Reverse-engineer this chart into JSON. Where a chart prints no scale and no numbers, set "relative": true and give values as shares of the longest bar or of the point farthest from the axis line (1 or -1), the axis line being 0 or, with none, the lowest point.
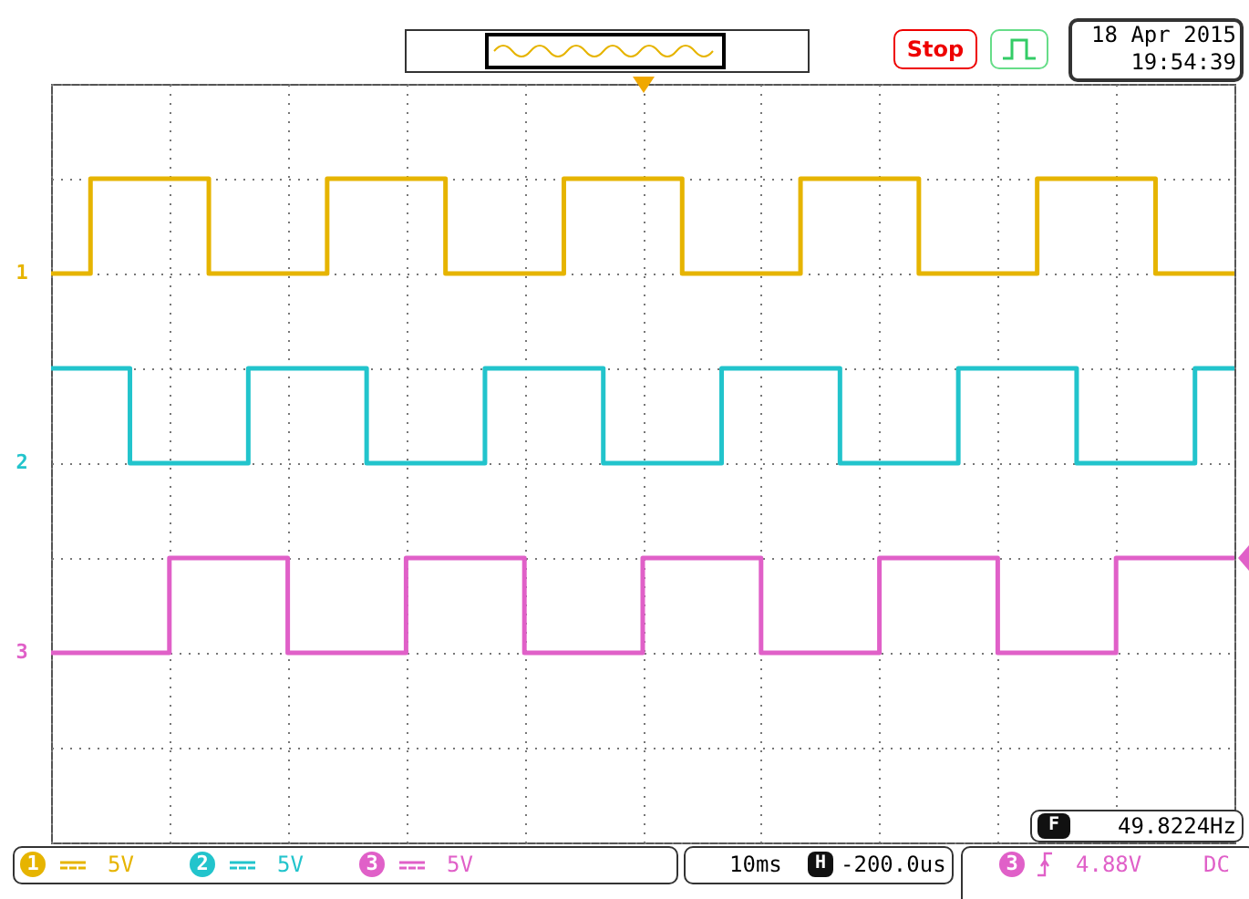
{
  "chart_data": {
    "type": "step",
    "relative": true,
    "grid": true,
    "legend": "bottom",
    "categories": [
      null,
      null,
      null,
      null,
      null,
      null,
      null,
      null,
      null,
      null,
      null,
      null,
      null,
      null,
      null,
      null,
      null,
      null,
      null,
      null,
      null,
      null,
      null,
      null,
      null,
      null,
      null,
      null,
      null,
      null,
      null
    ],
    "series": [
      {
        "name": "1",
        "color": "#e6b400",
        "values": [
          0.8,
          1,
          1,
          1,
          0.8,
          0.8,
          0.8,
          1,
          1,
          1,
          0.8,
          0.8,
          0.8,
          1,
          1,
          1,
          0.8,
          0.8,
          0.8,
          1,
          1,
          1,
          0.8,
          0.8,
          0.8,
          1,
          1,
          1,
          0.8,
          0.8,
          0.8
        ]
      },
      {
        "name": "2",
        "color": "#22c4cc",
        "values": [
          0.6,
          0.6,
          0.4,
          0.4,
          0.4,
          0.6,
          0.6,
          0.6,
          0.4,
          0.4,
          0.4,
          0.6,
          0.6,
          0.6,
          0.4,
          0.4,
          0.4,
          0.6,
          0.6,
          0.6,
          0.4,
          0.4,
          0.4,
          0.6,
          0.6,
          0.6,
          0.4,
          0.4,
          0.4,
          0.6,
          0.6
        ]
      },
      {
        "name": "3",
        "color": "#e060c8",
        "values": [
          0,
          0,
          0,
          0.2,
          0.2,
          0.2,
          0,
          0,
          0,
          0.2,
          0.2,
          0.2,
          0,
          0,
          0,
          0.2,
          0.2,
          0.2,
          0,
          0,
          0,
          0.2,
          0.2,
          0.2,
          0,
          0,
          0,
          0.2,
          0.2,
          0.2,
          0.2
        ]
      }
    ],
    "annotations": [
      "5V",
      "5V",
      "5V",
      "10ms",
      "-200.0us",
      "4.88V",
      "DC",
      "49.8224Hz",
      "Stop",
      "18 Apr 2015",
      "19:54:39",
      "F",
      "H"
    ]
  }
}
